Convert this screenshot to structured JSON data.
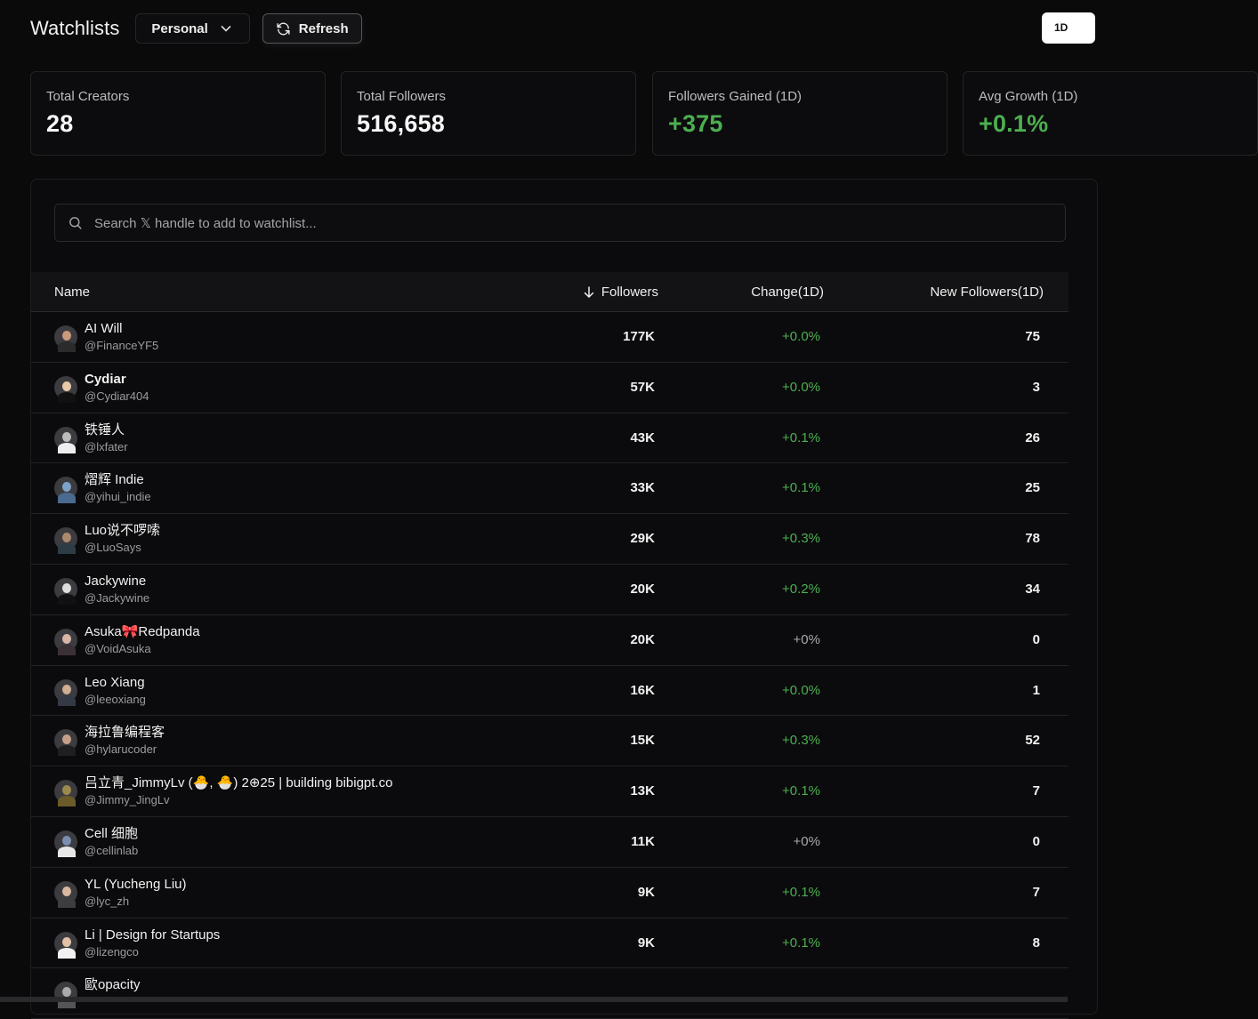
{
  "header": {
    "title": "Watchlists",
    "list_select": "Personal",
    "refresh_label": "Refresh",
    "range_label": "1D"
  },
  "stats": [
    {
      "label": "Total Creators",
      "value": "28",
      "positive": false
    },
    {
      "label": "Total Followers",
      "value": "516,658",
      "positive": false
    },
    {
      "label": "Followers Gained (1D)",
      "value": "+375",
      "positive": true
    },
    {
      "label": "Avg Growth (1D)",
      "value": "+0.1%",
      "positive": true
    }
  ],
  "search": {
    "placeholder": "Search 𝕏 handle to add to watchlist..."
  },
  "table": {
    "columns": {
      "name": "Name",
      "followers": "Followers",
      "change": "Change(1D)",
      "new_followers": "New Followers(1D)"
    },
    "rows": [
      {
        "name": "AI Will",
        "handle": "@FinanceYF5",
        "followers": "177K",
        "change": "+0.0%",
        "new": "75",
        "bold": false
      },
      {
        "name": "Cydiar",
        "handle": "@Cydiar404",
        "followers": "57K",
        "change": "+0.0%",
        "new": "3",
        "bold": true
      },
      {
        "name": "铁锤人",
        "handle": "@lxfater",
        "followers": "43K",
        "change": "+0.1%",
        "new": "26",
        "bold": false
      },
      {
        "name": "熠辉 Indie",
        "handle": "@yihui_indie",
        "followers": "33K",
        "change": "+0.1%",
        "new": "25",
        "bold": false
      },
      {
        "name": "Luo说不啰嗦",
        "handle": "@LuoSays",
        "followers": "29K",
        "change": "+0.3%",
        "new": "78",
        "bold": false
      },
      {
        "name": "Jackywine",
        "handle": "@Jackywine",
        "followers": "20K",
        "change": "+0.2%",
        "new": "34",
        "bold": false
      },
      {
        "name": "Asuka🎀Redpanda",
        "handle": "@VoidAsuka",
        "followers": "20K",
        "change": "+0%",
        "new": "0",
        "bold": false
      },
      {
        "name": "Leo Xiang",
        "handle": "@leeoxiang",
        "followers": "16K",
        "change": "+0.0%",
        "new": "1",
        "bold": false
      },
      {
        "name": "海拉鲁编程客",
        "handle": "@hylarucoder",
        "followers": "15K",
        "change": "+0.3%",
        "new": "52",
        "bold": false
      },
      {
        "name": "吕立青_JimmyLv (🐣, 🐣) 2⊕25 | building bibigpt.co",
        "handle": "@Jimmy_JingLv",
        "followers": "13K",
        "change": "+0.1%",
        "new": "7",
        "bold": false
      },
      {
        "name": "Cell 细胞",
        "handle": "@cellinlab",
        "followers": "11K",
        "change": "+0%",
        "new": "0",
        "bold": false
      },
      {
        "name": "YL (Yucheng Liu)",
        "handle": "@lyc_zh",
        "followers": "9K",
        "change": "+0.1%",
        "new": "7",
        "bold": false
      },
      {
        "name": "Li | Design for Startups",
        "handle": "@lizengco",
        "followers": "9K",
        "change": "+0.1%",
        "new": "8",
        "bold": false
      },
      {
        "name": "歐opacity",
        "handle": "",
        "followers": "",
        "change": "",
        "new": "",
        "bold": false
      }
    ]
  },
  "colors": {
    "positive": "#4caf50",
    "background": "#0a0a0b"
  },
  "avatar_colors": [
    [
      "#c89a7c",
      "#2b2b2b"
    ],
    [
      "#e8c9a8",
      "#111111"
    ],
    [
      "#bbbbbb",
      "#eeeeee"
    ],
    [
      "#7fa2c9",
      "#4a6a8f"
    ],
    [
      "#a98a6f",
      "#2e3c46"
    ],
    [
      "#dddddd",
      "#111111"
    ],
    [
      "#d8b5a5",
      "#3a3036"
    ],
    [
      "#cfae93",
      "#333a44"
    ],
    [
      "#c7a08a",
      "#1f1f1f"
    ],
    [
      "#9c8a4d",
      "#6b5a2a"
    ],
    [
      "#7a8fb0",
      "#e7e7e7"
    ],
    [
      "#d9b8a0",
      "#3d3d3d"
    ],
    [
      "#e2c2a6",
      "#f1f1f1"
    ],
    [
      "#aaaaaa",
      "#555555"
    ]
  ]
}
